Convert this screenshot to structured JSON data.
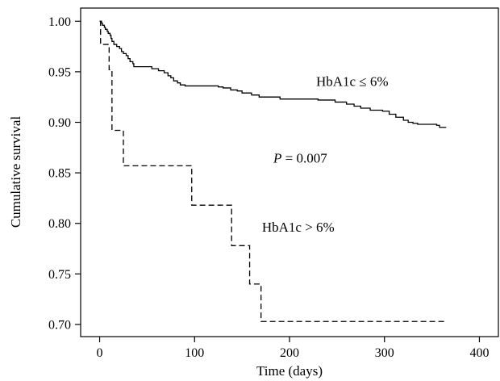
{
  "chart_data": {
    "type": "line",
    "title": "",
    "xlabel": "Time (days)",
    "ylabel": "Cumulative survival",
    "xlim": [
      -20,
      420
    ],
    "ylim": [
      0.688,
      1.013
    ],
    "xticks": [
      0,
      100,
      200,
      300,
      400
    ],
    "yticks": [
      0.7,
      0.75,
      0.8,
      0.85,
      0.9,
      0.95,
      1.0
    ],
    "grid": false,
    "legend": "none",
    "step": true,
    "series": [
      {
        "label": "HbA1c ≤ 6%",
        "style": "solid",
        "points": [
          [
            0,
            1.0
          ],
          [
            2,
            0.998
          ],
          [
            3,
            0.996
          ],
          [
            5,
            0.994
          ],
          [
            6,
            0.992
          ],
          [
            8,
            0.99
          ],
          [
            9,
            0.988
          ],
          [
            11,
            0.986
          ],
          [
            12,
            0.983
          ],
          [
            13,
            0.98
          ],
          [
            15,
            0.977
          ],
          [
            18,
            0.975
          ],
          [
            21,
            0.973
          ],
          [
            23,
            0.97
          ],
          [
            25,
            0.968
          ],
          [
            28,
            0.966
          ],
          [
            30,
            0.963
          ],
          [
            32,
            0.96
          ],
          [
            35,
            0.958
          ],
          [
            36,
            0.955
          ],
          [
            55,
            0.953
          ],
          [
            62,
            0.951
          ],
          [
            68,
            0.949
          ],
          [
            72,
            0.946
          ],
          [
            75,
            0.944
          ],
          [
            78,
            0.941
          ],
          [
            82,
            0.939
          ],
          [
            85,
            0.937
          ],
          [
            90,
            0.936
          ],
          [
            125,
            0.935
          ],
          [
            130,
            0.934
          ],
          [
            138,
            0.932
          ],
          [
            145,
            0.931
          ],
          [
            150,
            0.929
          ],
          [
            160,
            0.927
          ],
          [
            168,
            0.925
          ],
          [
            190,
            0.923
          ],
          [
            230,
            0.922
          ],
          [
            248,
            0.92
          ],
          [
            260,
            0.918
          ],
          [
            268,
            0.916
          ],
          [
            275,
            0.914
          ],
          [
            285,
            0.912
          ],
          [
            298,
            0.911
          ],
          [
            305,
            0.908
          ],
          [
            312,
            0.905
          ],
          [
            320,
            0.902
          ],
          [
            325,
            0.9
          ],
          [
            330,
            0.899
          ],
          [
            335,
            0.898
          ],
          [
            355,
            0.897
          ],
          [
            358,
            0.895
          ],
          [
            365,
            0.895
          ]
        ]
      },
      {
        "label": "HbA1c > 6%",
        "style": "dashed",
        "points": [
          [
            0,
            1.0
          ],
          [
            1,
            0.977
          ],
          [
            10,
            0.952
          ],
          [
            13,
            0.892
          ],
          [
            25,
            0.857
          ],
          [
            97,
            0.818
          ],
          [
            139,
            0.778
          ],
          [
            158,
            0.74
          ],
          [
            170,
            0.703
          ],
          [
            365,
            0.703
          ]
        ]
      }
    ],
    "annotations": [
      {
        "text": "HbA1c ≤ 6%",
        "x": 228,
        "y": 0.936
      },
      {
        "text": "= 0.007",
        "prefix": "P",
        "x": 183,
        "y": 0.86
      },
      {
        "text": "HbA1c > 6%",
        "x": 171,
        "y": 0.792
      }
    ]
  }
}
